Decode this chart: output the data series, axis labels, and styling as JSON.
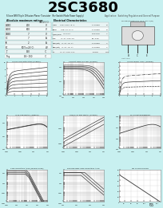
{
  "title": "2SC3680",
  "title_bg": "#00FFFF",
  "title_color": "#000000",
  "page_bg": "#C8F0F0",
  "subtitle_left": "Silicon NPN Triple Diffusion Planar Transistor  (For Switch Mode Power Supply)",
  "subtitle_right": "Application:  Switching Regulator and General Purpose",
  "graph_titles": [
    "Ic-Vce Characteristics (Typical)",
    "Current Output vs Frequency Characteristics (Typical)",
    "Ic-Vce Temperature Characteristics (Typical)",
    "Ic vs hFE MEASUREMENT (Typical)",
    "hoe, hoe/IC vs hFE MEASUREMENT (Typical)",
    "f T vs MEASUREMENT",
    "Safe Operating Area (Single Pulse)",
    "Reverse Bias Safe Operating Area",
    "PD vs ROUNDING"
  ],
  "grid_color": "#BBBBBB",
  "plot_bg": "#FFFFFF",
  "border_color": "#888888",
  "page_number": "65"
}
